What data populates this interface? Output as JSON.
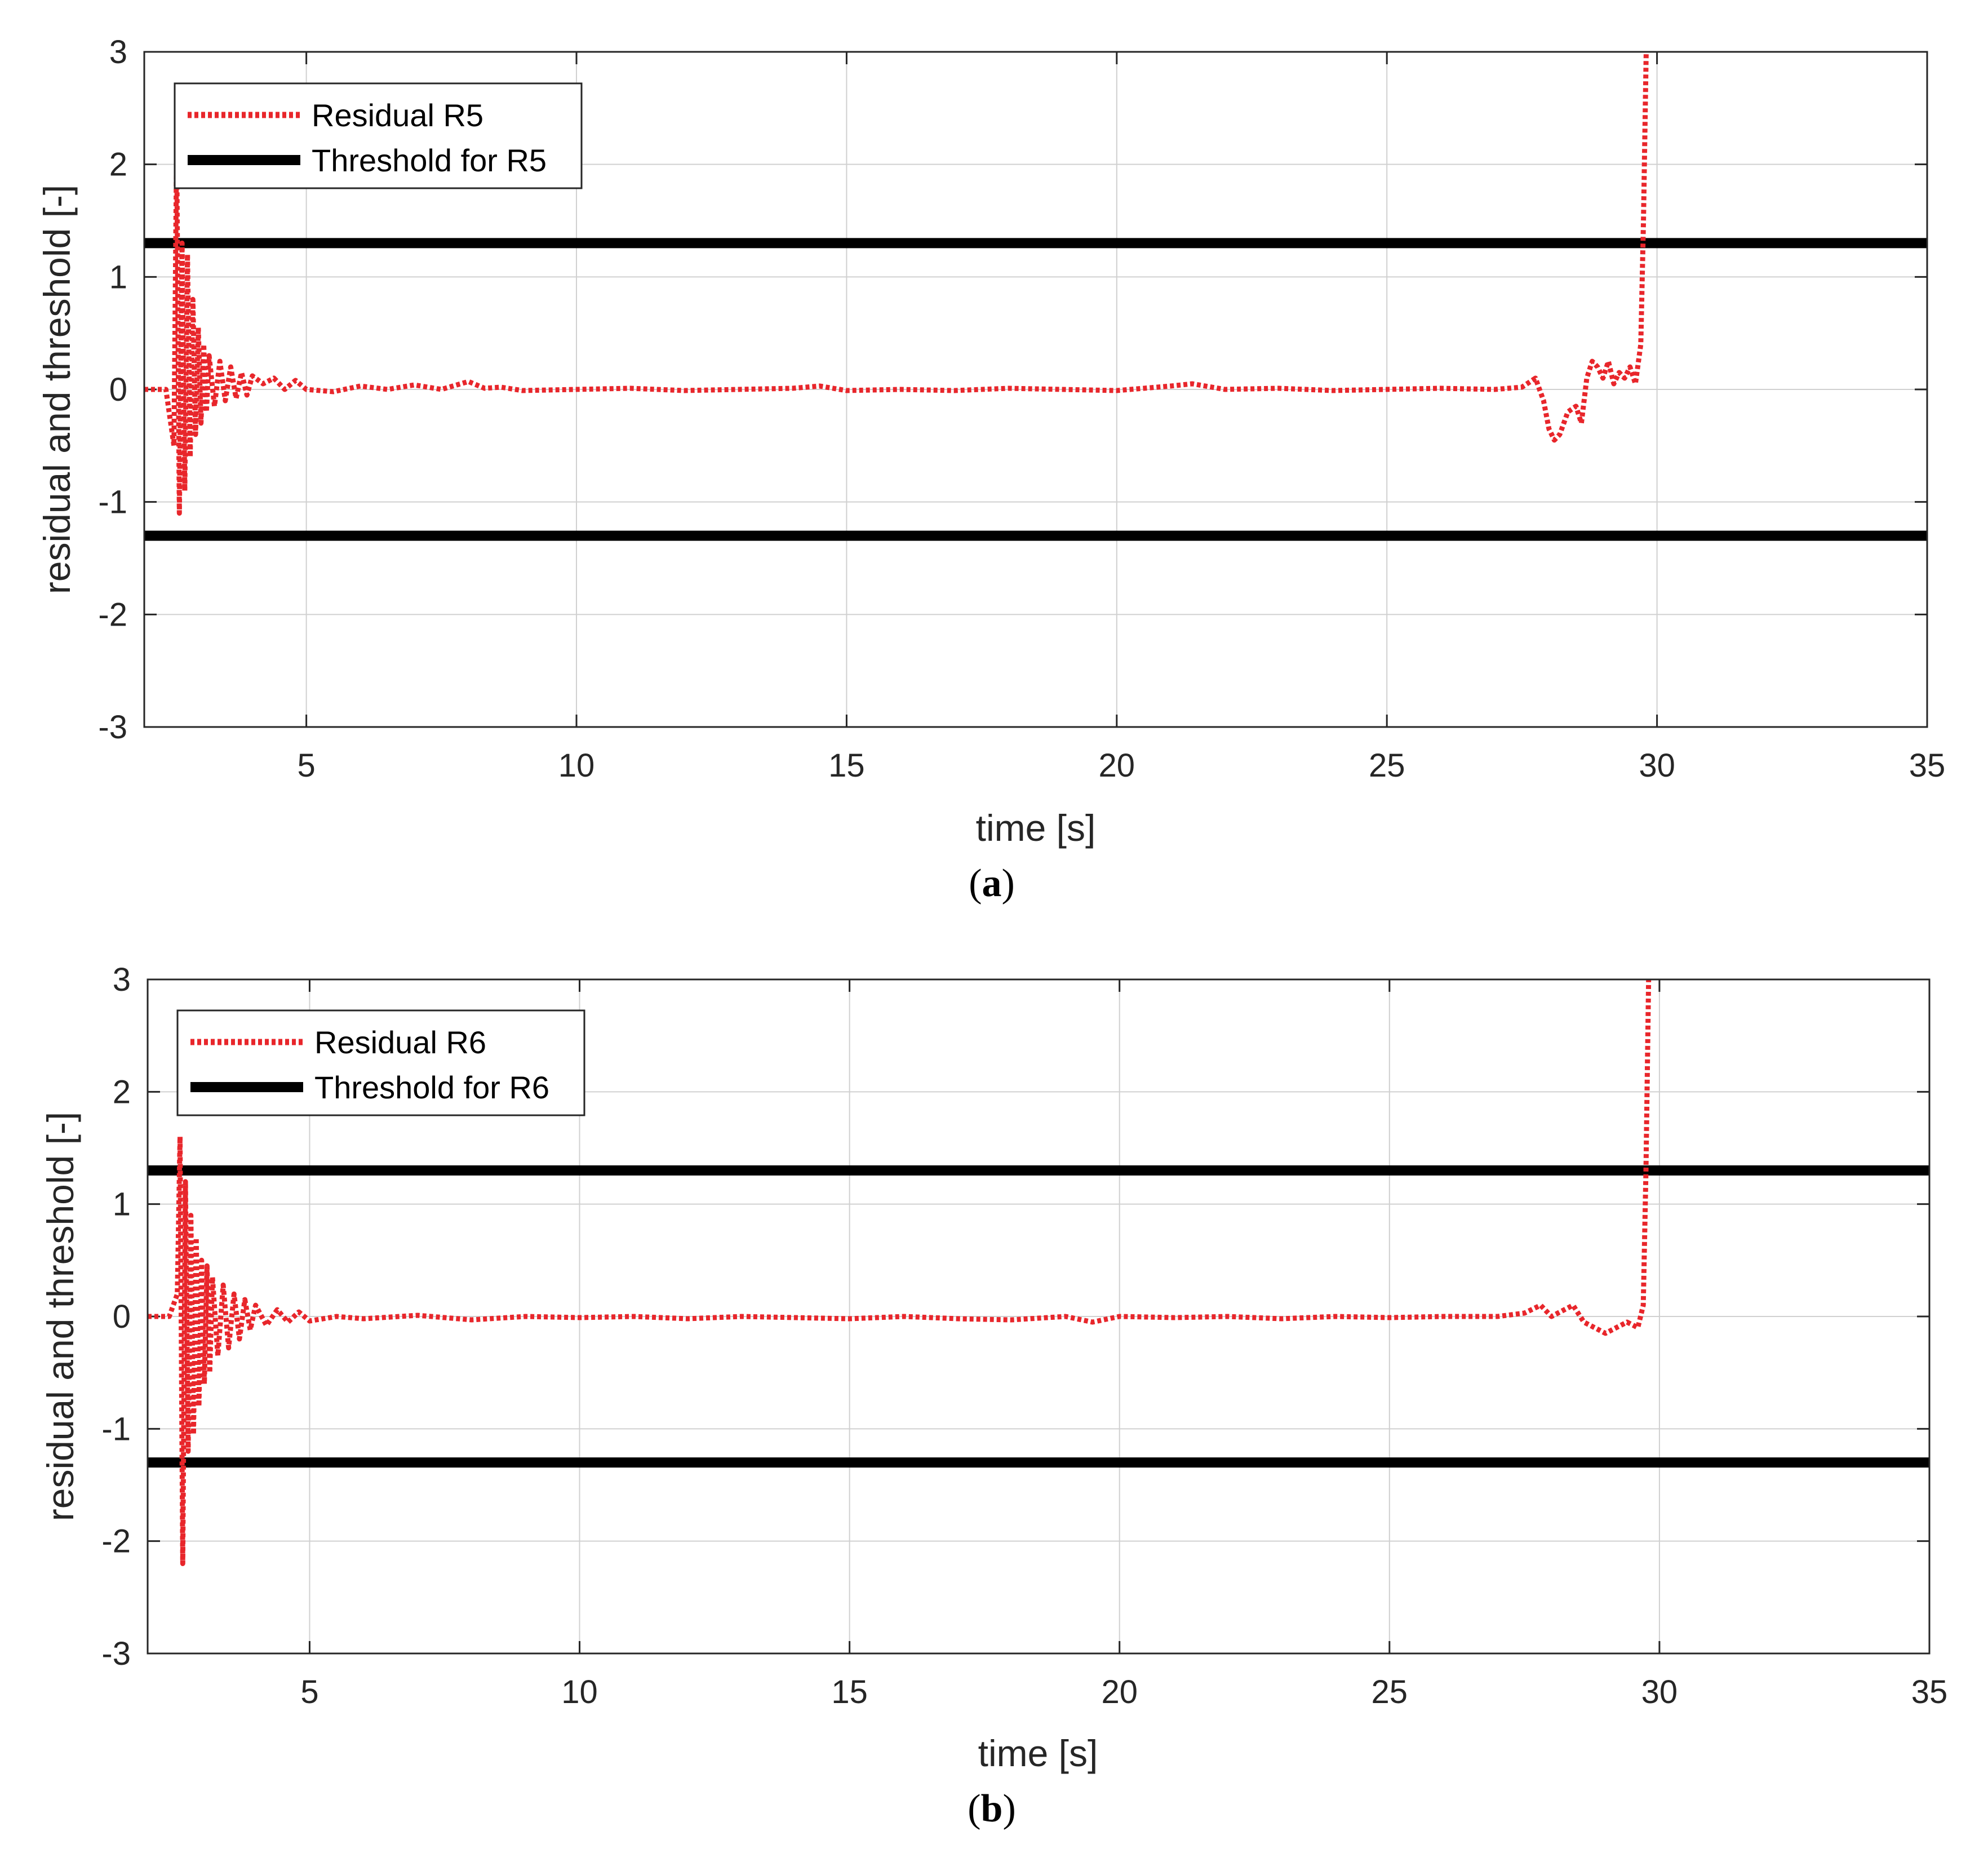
{
  "chart_data": [
    {
      "type": "line",
      "panel_label": "a",
      "xlabel": "time [s]",
      "ylabel": "residual and threshold [-]",
      "xlim": [
        2,
        35
      ],
      "ylim": [
        -3,
        3
      ],
      "xticks": [
        5,
        10,
        15,
        20,
        25,
        30,
        35
      ],
      "yticks": [
        -3,
        -2,
        -1,
        0,
        1,
        2,
        3
      ],
      "grid": true,
      "legend_position": "top-left",
      "series": [
        {
          "name": "Residual R5",
          "style": "dotted",
          "color": "#e8262b",
          "x": [
            2.0,
            2.4,
            2.55,
            2.6,
            2.65,
            2.7,
            2.75,
            2.8,
            2.85,
            2.9,
            2.95,
            3.0,
            3.05,
            3.1,
            3.15,
            3.2,
            3.3,
            3.4,
            3.5,
            3.6,
            3.7,
            3.8,
            3.9,
            4.0,
            4.2,
            4.4,
            4.6,
            4.8,
            5.0,
            5.5,
            6.0,
            6.5,
            7.0,
            7.5,
            8.0,
            8.3,
            8.6,
            9.0,
            10.0,
            11.0,
            12.0,
            13.0,
            14.0,
            14.5,
            15.0,
            16.0,
            17.0,
            18.0,
            19.0,
            20.0,
            21.0,
            21.4,
            22.0,
            23.0,
            24.0,
            25.0,
            26.0,
            27.0,
            27.5,
            27.75,
            27.9,
            28.0,
            28.1,
            28.2,
            28.35,
            28.5,
            28.6,
            28.7,
            28.8,
            28.9,
            29.0,
            29.1,
            29.2,
            29.3,
            29.4,
            29.5,
            29.6,
            29.7,
            29.75,
            29.8
          ],
          "y": [
            0.0,
            0.0,
            -0.5,
            2.2,
            -1.1,
            1.3,
            -0.9,
            1.2,
            -0.6,
            0.8,
            -0.4,
            0.55,
            -0.3,
            0.4,
            -0.2,
            0.3,
            -0.15,
            0.25,
            -0.1,
            0.2,
            -0.08,
            0.15,
            -0.05,
            0.12,
            0.05,
            0.1,
            0.0,
            0.08,
            0.0,
            -0.02,
            0.03,
            0.0,
            0.04,
            0.0,
            0.07,
            0.01,
            0.02,
            -0.01,
            0.0,
            0.01,
            -0.01,
            0.0,
            0.01,
            0.03,
            -0.01,
            0.0,
            -0.01,
            0.01,
            0.0,
            -0.01,
            0.03,
            0.05,
            0.0,
            0.01,
            -0.01,
            0.0,
            0.01,
            0.0,
            0.02,
            0.1,
            -0.1,
            -0.35,
            -0.45,
            -0.4,
            -0.2,
            -0.15,
            -0.3,
            0.1,
            0.25,
            0.2,
            0.1,
            0.25,
            0.05,
            0.15,
            0.1,
            0.2,
            0.05,
            0.4,
            1.5,
            3.0
          ]
        },
        {
          "name": "Threshold for R5",
          "style": "solid",
          "color": "#000000",
          "value": 1.3,
          "symmetric": true
        }
      ]
    },
    {
      "type": "line",
      "panel_label": "b",
      "xlabel": "time [s]",
      "ylabel": "residual and threshold [-]",
      "xlim": [
        2,
        35
      ],
      "ylim": [
        -3,
        3
      ],
      "xticks": [
        5,
        10,
        15,
        20,
        25,
        30,
        35
      ],
      "yticks": [
        -3,
        -2,
        -1,
        0,
        1,
        2,
        3
      ],
      "grid": true,
      "legend_position": "top-left",
      "series": [
        {
          "name": "Residual R6",
          "style": "dotted",
          "color": "#e8262b",
          "x": [
            2.0,
            2.4,
            2.55,
            2.6,
            2.65,
            2.7,
            2.75,
            2.8,
            2.85,
            2.9,
            2.95,
            3.0,
            3.05,
            3.1,
            3.15,
            3.2,
            3.3,
            3.4,
            3.5,
            3.6,
            3.7,
            3.8,
            3.9,
            4.0,
            4.2,
            4.4,
            4.6,
            4.8,
            5.0,
            5.5,
            6.0,
            7.0,
            8.0,
            9.0,
            10.0,
            11.0,
            12.0,
            13.0,
            14.0,
            15.0,
            16.0,
            17.0,
            18.0,
            19.0,
            19.5,
            20.0,
            21.0,
            22.0,
            23.0,
            24.0,
            25.0,
            26.0,
            27.0,
            27.5,
            27.8,
            28.0,
            28.2,
            28.4,
            28.6,
            28.8,
            29.0,
            29.2,
            29.4,
            29.6,
            29.7,
            29.75,
            29.8
          ],
          "y": [
            0.0,
            0.0,
            0.2,
            1.6,
            -2.2,
            1.2,
            -1.2,
            0.9,
            -1.05,
            0.7,
            -0.8,
            0.5,
            -0.6,
            0.45,
            -0.5,
            0.35,
            -0.35,
            0.28,
            -0.28,
            0.2,
            -0.2,
            0.15,
            -0.12,
            0.1,
            -0.08,
            0.06,
            -0.05,
            0.04,
            -0.04,
            0.0,
            -0.02,
            0.01,
            -0.03,
            0.0,
            -0.01,
            0.0,
            -0.02,
            0.0,
            -0.01,
            -0.02,
            0.0,
            -0.02,
            -0.03,
            0.0,
            -0.05,
            0.0,
            -0.01,
            0.0,
            -0.02,
            0.0,
            -0.01,
            0.0,
            0.0,
            0.03,
            0.1,
            0.0,
            0.05,
            0.1,
            -0.05,
            -0.1,
            -0.15,
            -0.1,
            -0.05,
            -0.1,
            0.1,
            1.3,
            3.0
          ]
        },
        {
          "name": "Threshold for R6",
          "style": "solid",
          "color": "#000000",
          "value": 1.3,
          "symmetric": true
        }
      ]
    }
  ]
}
